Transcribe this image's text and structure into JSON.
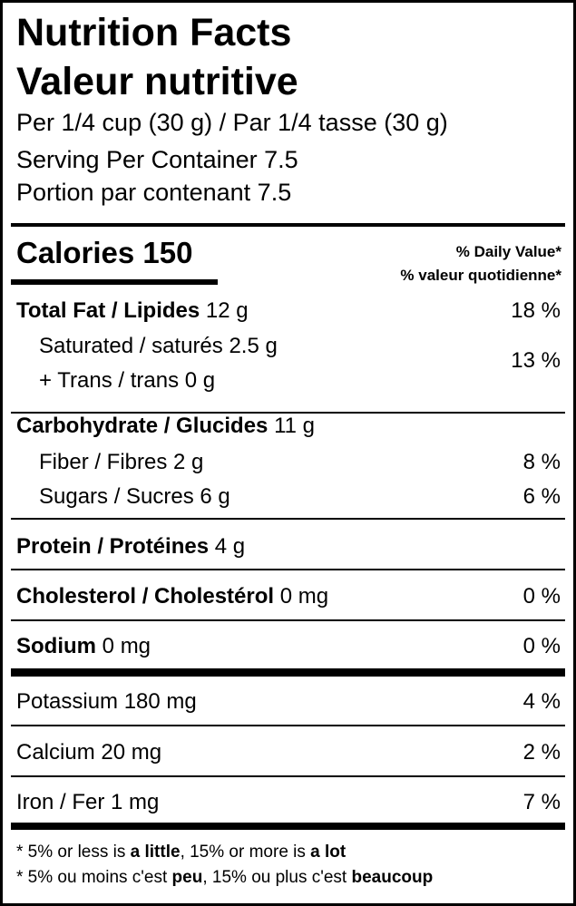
{
  "header": {
    "title_en": "Nutrition Facts",
    "title_fr": "Valeur nutritive",
    "serving_size": "Per 1/4 cup (30 g) / Par 1/4 tasse (30 g)",
    "servings_en": "Serving Per Container 7.5",
    "servings_fr": "Portion par contenant 7.5"
  },
  "calories": {
    "label": "Calories 150",
    "dv_en": "% Daily Value*",
    "dv_fr": "% valeur quotidienne*"
  },
  "nutrients": {
    "fat": {
      "name": "Total Fat / Lipides",
      "amount": "12 g",
      "dv": "18 %"
    },
    "saturated": {
      "name": "Saturated / saturés 2.5 g"
    },
    "trans": {
      "name": "+ Trans / trans 0 g",
      "dv": "13 %"
    },
    "carb": {
      "name": "Carbohydrate / Glucides",
      "amount": "11 g"
    },
    "fiber": {
      "name": "Fiber / Fibres 2 g",
      "dv": "8 %"
    },
    "sugars": {
      "name": "Sugars / Sucres 6 g",
      "dv": "6 %"
    },
    "protein": {
      "name": "Protein / Protéines",
      "amount": "4 g"
    },
    "cholesterol": {
      "name": "Cholesterol / Cholestérol",
      "amount": "0 mg",
      "dv": "0 %"
    },
    "sodium": {
      "name": "Sodium",
      "amount": "0 mg",
      "dv": "0 %"
    },
    "potassium": {
      "name": "Potassium 180 mg",
      "dv": "4 %"
    },
    "calcium": {
      "name": "Calcium 20 mg",
      "dv": "2 %"
    },
    "iron": {
      "name": "Iron / Fer 1 mg",
      "dv": "7 %"
    }
  },
  "footnote": {
    "en": {
      "a": "* 5% or less is ",
      "b": "a little",
      "c": ", 15% or more is ",
      "d": "a lot"
    },
    "fr": {
      "a": "* 5% ou moins c'est ",
      "b": "peu",
      "c": ", 15% ou plus c'est ",
      "d": "beaucoup"
    }
  }
}
